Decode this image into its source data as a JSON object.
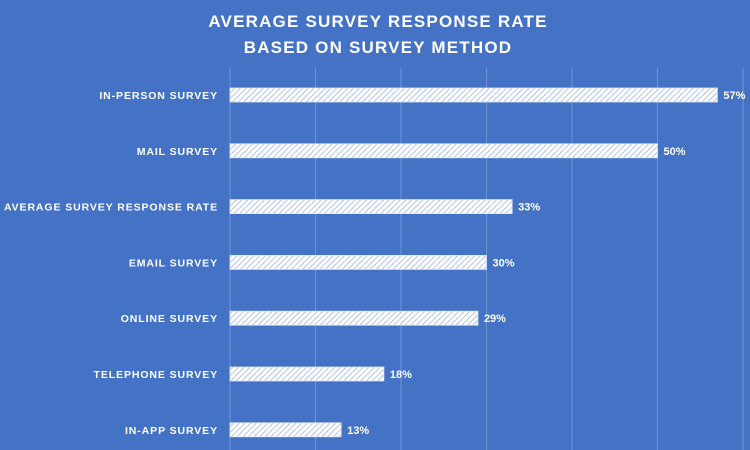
{
  "chart_data": {
    "type": "bar",
    "orientation": "horizontal",
    "title_lines": [
      "AVERAGE SURVEY RESPONSE RATE",
      "BASED ON SURVEY METHOD"
    ],
    "categories": [
      "IN-PERSON SURVEY",
      "MAIL SURVEY",
      "AVERAGE SURVEY RESPONSE RATE",
      "EMAIL SURVEY",
      "ONLINE SURVEY",
      "TELEPHONE SURVEY",
      "IN-APP SURVEY"
    ],
    "values": [
      57,
      50,
      33,
      30,
      29,
      18,
      13
    ],
    "value_labels": [
      "57%",
      "50%",
      "33%",
      "30%",
      "29%",
      "18%",
      "13%"
    ],
    "xlim": [
      0,
      60
    ],
    "grid": true,
    "legend": "none",
    "colors": {
      "background": "#4472c4",
      "bar_fill": "#ffffff",
      "bar_hatch": "#9fb6e3",
      "gridline": "#6f93d6",
      "text": "#ffffff"
    }
  }
}
